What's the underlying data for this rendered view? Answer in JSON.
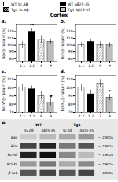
{
  "title": "Cortex",
  "series": [
    {
      "name": "WT Sc.Aβ",
      "color": "white"
    },
    {
      "name": "WT Aβ25-35",
      "color": "black"
    },
    {
      "name": "Tg1 Sc.Aβ",
      "color": "#aaaaaa"
    },
    {
      "name": "Tg1 Aβ25-35",
      "color": "#cccccc"
    }
  ],
  "chart_data": [
    {
      "type": "bar",
      "title": "a.",
      "ylabel": "Bax/β-Tubulin (%)",
      "categories": [
        "1.1",
        "1.2",
        "9",
        "9"
      ],
      "values": [
        100,
        120,
        108,
        105
      ],
      "errors": [
        5,
        5,
        5,
        4
      ],
      "colors": [
        "white",
        "black",
        "white",
        "#bbbbbb"
      ],
      "ylim": [
        75,
        130
      ],
      "yticks": [
        80,
        90,
        100,
        110,
        120
      ],
      "annotations": [
        {
          "text": "**",
          "x": 1
        }
      ]
    },
    {
      "type": "bar",
      "title": "b.",
      "ylabel": "Bim/β-Tubulin (%)",
      "categories": [
        "1.1",
        "1.2",
        "9",
        "9"
      ],
      "values": [
        100,
        105,
        100,
        100
      ],
      "errors": [
        4,
        4,
        5,
        4
      ],
      "colors": [
        "white",
        "black",
        "white",
        "#bbbbbb"
      ],
      "ylim": [
        75,
        130
      ],
      "yticks": [
        80,
        90,
        100,
        110,
        120
      ]
    },
    {
      "type": "bar",
      "title": "c.",
      "ylabel": "Bcl-W/β-Tubulin (%)",
      "categories": [
        "1.1",
        "1.2",
        "9",
        "9"
      ],
      "values": [
        100,
        98,
        90,
        82
      ],
      "errors": [
        4,
        4,
        5,
        4
      ],
      "colors": [
        "white",
        "black",
        "white",
        "#bbbbbb"
      ],
      "ylim": [
        70,
        115
      ],
      "yticks": [
        70,
        80,
        90,
        100,
        110
      ],
      "annotations": [
        {
          "text": "#",
          "x": 3
        }
      ]
    },
    {
      "type": "bar",
      "title": "d.",
      "ylabel": "Bcl-XL/β-Tubulin (%)",
      "categories": [
        "1.2",
        "1.2",
        "7",
        "8"
      ],
      "values": [
        100,
        92,
        105,
        88
      ],
      "errors": [
        4,
        5,
        5,
        4
      ],
      "colors": [
        "white",
        "black",
        "white",
        "#bbbbbb"
      ],
      "ylim": [
        70,
        115
      ],
      "yticks": [
        70,
        80,
        90,
        100,
        110
      ],
      "annotations": [
        {
          "text": "*",
          "x": 3
        }
      ]
    },
    {
      "type": "blot",
      "title": "e.",
      "annotations": [
        "WT",
        "Tg1"
      ],
      "categories": [
        "Sc.Aβ",
        "Aβ25-35",
        "Sc.Aβ",
        "Aβ25-35"
      ],
      "series": [
        {
          "name": "Bax",
          "colors": [
            "#cccccc",
            "#bbbbbb",
            "#aaaaaa",
            "#999999"
          ],
          "annotation": "— 20KDa"
        },
        {
          "name": "Bim",
          "colors": [
            "#444444",
            "#222222",
            "#777777",
            "#555555"
          ],
          "annotation": "— 23KDa"
        },
        {
          "name": "Bcl-W",
          "colors": [
            "#222222",
            "#111111",
            "#888888",
            "#bbbbbb"
          ],
          "annotation": "— 19KDa"
        },
        {
          "name": "Bcl-XL",
          "colors": [
            "#999999",
            "#777777",
            "#aaaaaa",
            "#888888"
          ],
          "annotation": "— 29KDa"
        },
        {
          "name": "β-tub",
          "colors": [
            "#555555",
            "#444444",
            "#555555",
            "#444444"
          ],
          "annotation": "— 48KDa"
        }
      ]
    }
  ]
}
